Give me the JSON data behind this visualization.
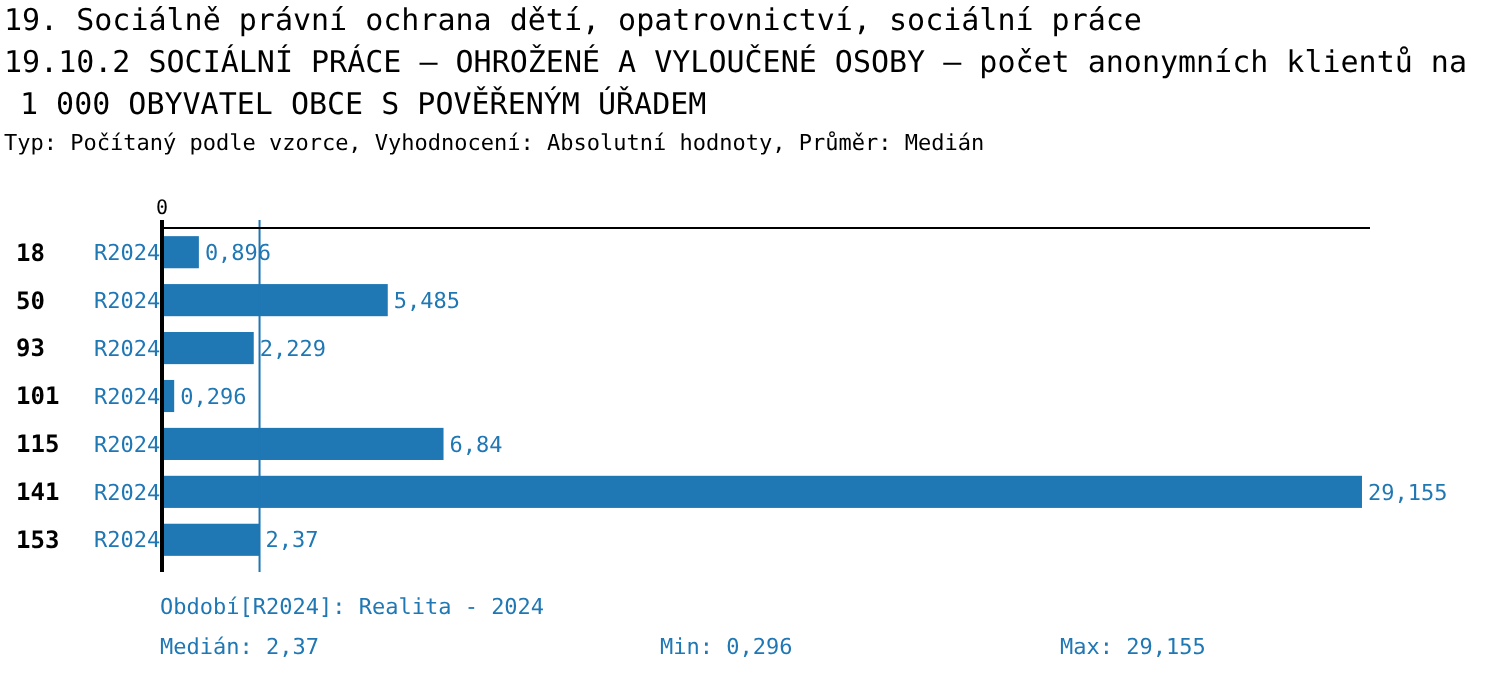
{
  "chart_data": {
    "type": "bar",
    "orientation": "horizontal",
    "title": "19. Sociálně právní ochrana dětí, opatrovnictví, sociální práce",
    "subtitle": "19.10.2 SOCIÁLNÍ PRÁCE – OHROŽENÉ A VYLOUČENÉ OSOBY – počet anonymních klientů na 1 000 OBYVATEL OBCE S POVĚŘENÝM ÚŘADEM",
    "categories": [
      "18",
      "50",
      "93",
      "101",
      "115",
      "141",
      "153"
    ],
    "series": [
      {
        "name": "R2024",
        "color": "#1f77b4",
        "values": [
          0.896,
          5.485,
          2.229,
          0.296,
          6.84,
          29.155,
          2.37
        ],
        "value_labels": [
          "0,896",
          "5,485",
          "2,229",
          "0,296",
          "6,84",
          "29,155",
          "2,37"
        ]
      }
    ],
    "xlim": [
      0,
      29.35
    ],
    "ref_lines": [
      {
        "axis": "x",
        "value": 2.37,
        "color": "#1f77b4"
      }
    ],
    "annotations": [
      "0",
      "Typ: Počítaný podle vzorce, Vyhodnocení: Absolutní hodnoty, Průměr: Medián",
      "Období[R2024]: Realita - 2024",
      "Medián: 2,37",
      "Min: 0,296",
      "Max: 29,155"
    ]
  }
}
